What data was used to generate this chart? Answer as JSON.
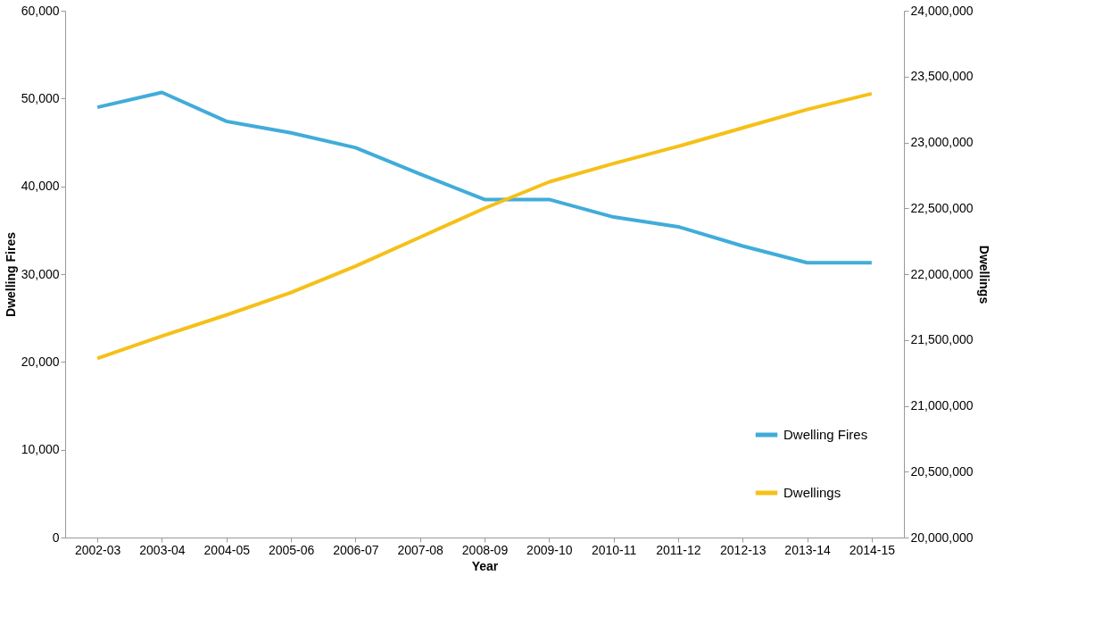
{
  "chart_data": {
    "type": "line",
    "xlabel": "Year",
    "ylabel": "Dwelling Fires",
    "y2label": "Dwellings",
    "categories": [
      "2002-03",
      "2003-04",
      "2004-05",
      "2005-06",
      "2006-07",
      "2007-08",
      "2008-09",
      "2009-10",
      "2010-11",
      "2011-12",
      "2012-13",
      "2013-14",
      "2014-15"
    ],
    "series": [
      {
        "name": "Dwelling Fires",
        "color": "#41acd9",
        "values": [
          49000,
          50700,
          47400,
          46100,
          44400,
          41400,
          38500,
          38500,
          36500,
          35400,
          33200,
          31300,
          31300
        ]
      },
      {
        "name": "Dwellings",
        "color": "#f5c018",
        "axis": "y2",
        "values": [
          21360000,
          21530000,
          21690000,
          21860000,
          22060000,
          22280000,
          22500000,
          22700000,
          22840000,
          22970000,
          23110000,
          23250000,
          23370000
        ]
      }
    ],
    "ylim": [
      0,
      60000
    ],
    "yticks": [
      0,
      {
        "value": 10000,
        "label": "10,000"
      },
      {
        "value": 20000,
        "label": "20,000"
      },
      {
        "value": 30000,
        "label": "30,000"
      },
      {
        "value": 40000,
        "label": "40,000"
      },
      {
        "value": 50000,
        "label": "50,000"
      },
      {
        "value": 60000,
        "label": "60,000"
      }
    ],
    "y2lim": [
      20000000,
      24000000
    ],
    "y2ticks": [
      {
        "value": 20000000,
        "label": "20,000,000"
      },
      {
        "value": 20500000,
        "label": "20,500,000"
      },
      {
        "value": 21000000,
        "label": "21,000,000"
      },
      {
        "value": 21500000,
        "label": "21,500,000"
      },
      {
        "value": 22000000,
        "label": "22,000,000"
      },
      {
        "value": 22500000,
        "label": "22,500,000"
      },
      {
        "value": 23000000,
        "label": "23,000,000"
      },
      {
        "value": 23500000,
        "label": "23,500,000"
      },
      {
        "value": 24000000,
        "label": "24,000,000"
      }
    ],
    "grid": false,
    "legend": "bottom right",
    "marker": "none",
    "line_style": "solid"
  }
}
